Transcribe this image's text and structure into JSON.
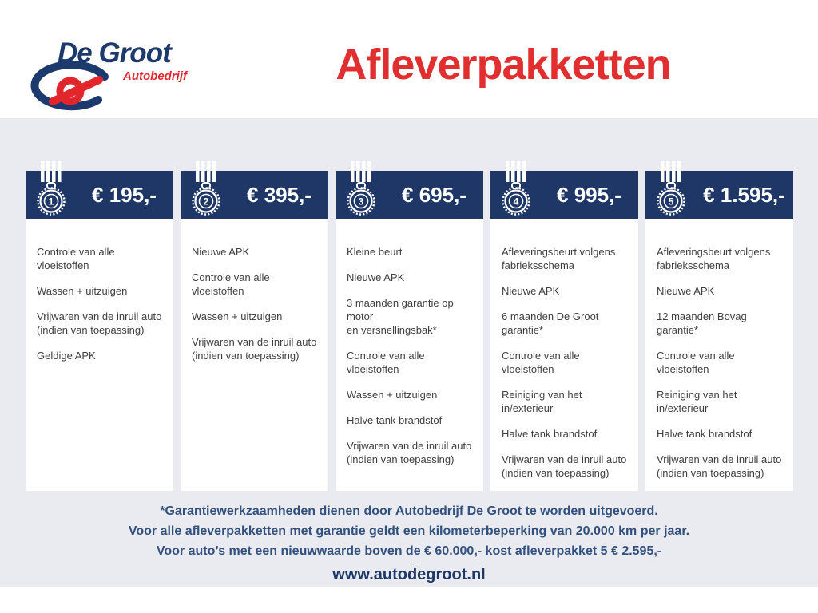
{
  "brand": {
    "name": "De Groot",
    "subtitle": "Autobedrijf"
  },
  "page_title": "Afleverpakketten",
  "packages": [
    {
      "rank": "1",
      "price": "€ 195,-",
      "items": [
        "Controle van alle vloeistoffen",
        "Wassen + uitzuigen",
        [
          "Vrijwaren van de inruil auto",
          "(indien van toepassing)"
        ],
        "Geldige APK"
      ]
    },
    {
      "rank": "2",
      "price": "€ 395,-",
      "items": [
        "Nieuwe APK",
        "Controle van alle vloeistoffen",
        "Wassen + uitzuigen",
        [
          "Vrijwaren van de inruil auto",
          "(indien van toepassing)"
        ]
      ]
    },
    {
      "rank": "3",
      "price": "€ 695,-",
      "items": [
        "Kleine beurt",
        "Nieuwe APK",
        [
          "3 maanden garantie op motor",
          "en versnellingsbak*"
        ],
        "Controle van alle vloeistoffen",
        "Wassen + uitzuigen",
        "Halve tank brandstof",
        [
          "Vrijwaren van de inruil auto",
          "(indien van toepassing)"
        ]
      ]
    },
    {
      "rank": "4",
      "price": "€ 995,-",
      "items": [
        [
          "Afleveringsbeurt volgens",
          "fabrieksschema"
        ],
        "Nieuwe APK",
        "6 maanden De Groot garantie*",
        "Controle van alle vloeistoffen",
        "Reiniging van het in/exterieur",
        "Halve tank brandstof",
        [
          "Vrijwaren van de inruil auto",
          "(indien van toepassing)"
        ]
      ]
    },
    {
      "rank": "5",
      "price": "€ 1.595,-",
      "items": [
        [
          "Afleveringsbeurt volgens",
          "fabrieksschema"
        ],
        "Nieuwe APK",
        "12 maanden Bovag garantie*",
        "Controle van alle vloeistoffen",
        "Reiniging van het in/exterieur",
        "Halve tank brandstof",
        [
          "Vrijwaren van de inruil auto",
          "(indien van toepassing)"
        ]
      ]
    }
  ],
  "footnotes": [
    "*Garantiewerkzaamheden dienen door Autobedrijf De Groot te worden uitgevoerd.",
    "Voor alle afleverpakketten met garantie geldt een kilometerbeperking van 20.000 km per jaar.",
    "Voor auto’s met een nieuwwaarde boven de € 60.000,- kost afleverpakket 5 € 2.595,-"
  ],
  "website": "www.autodegroot.nl",
  "colors": {
    "navy": "#1f3766",
    "title_red": "#e12f2f",
    "logo_blue": "#1c3a6e",
    "logo_red": "#e2262c",
    "page_gray": "#e9ebf0",
    "item_text": "#3f3f3f",
    "note_blue": "#33517e"
  }
}
